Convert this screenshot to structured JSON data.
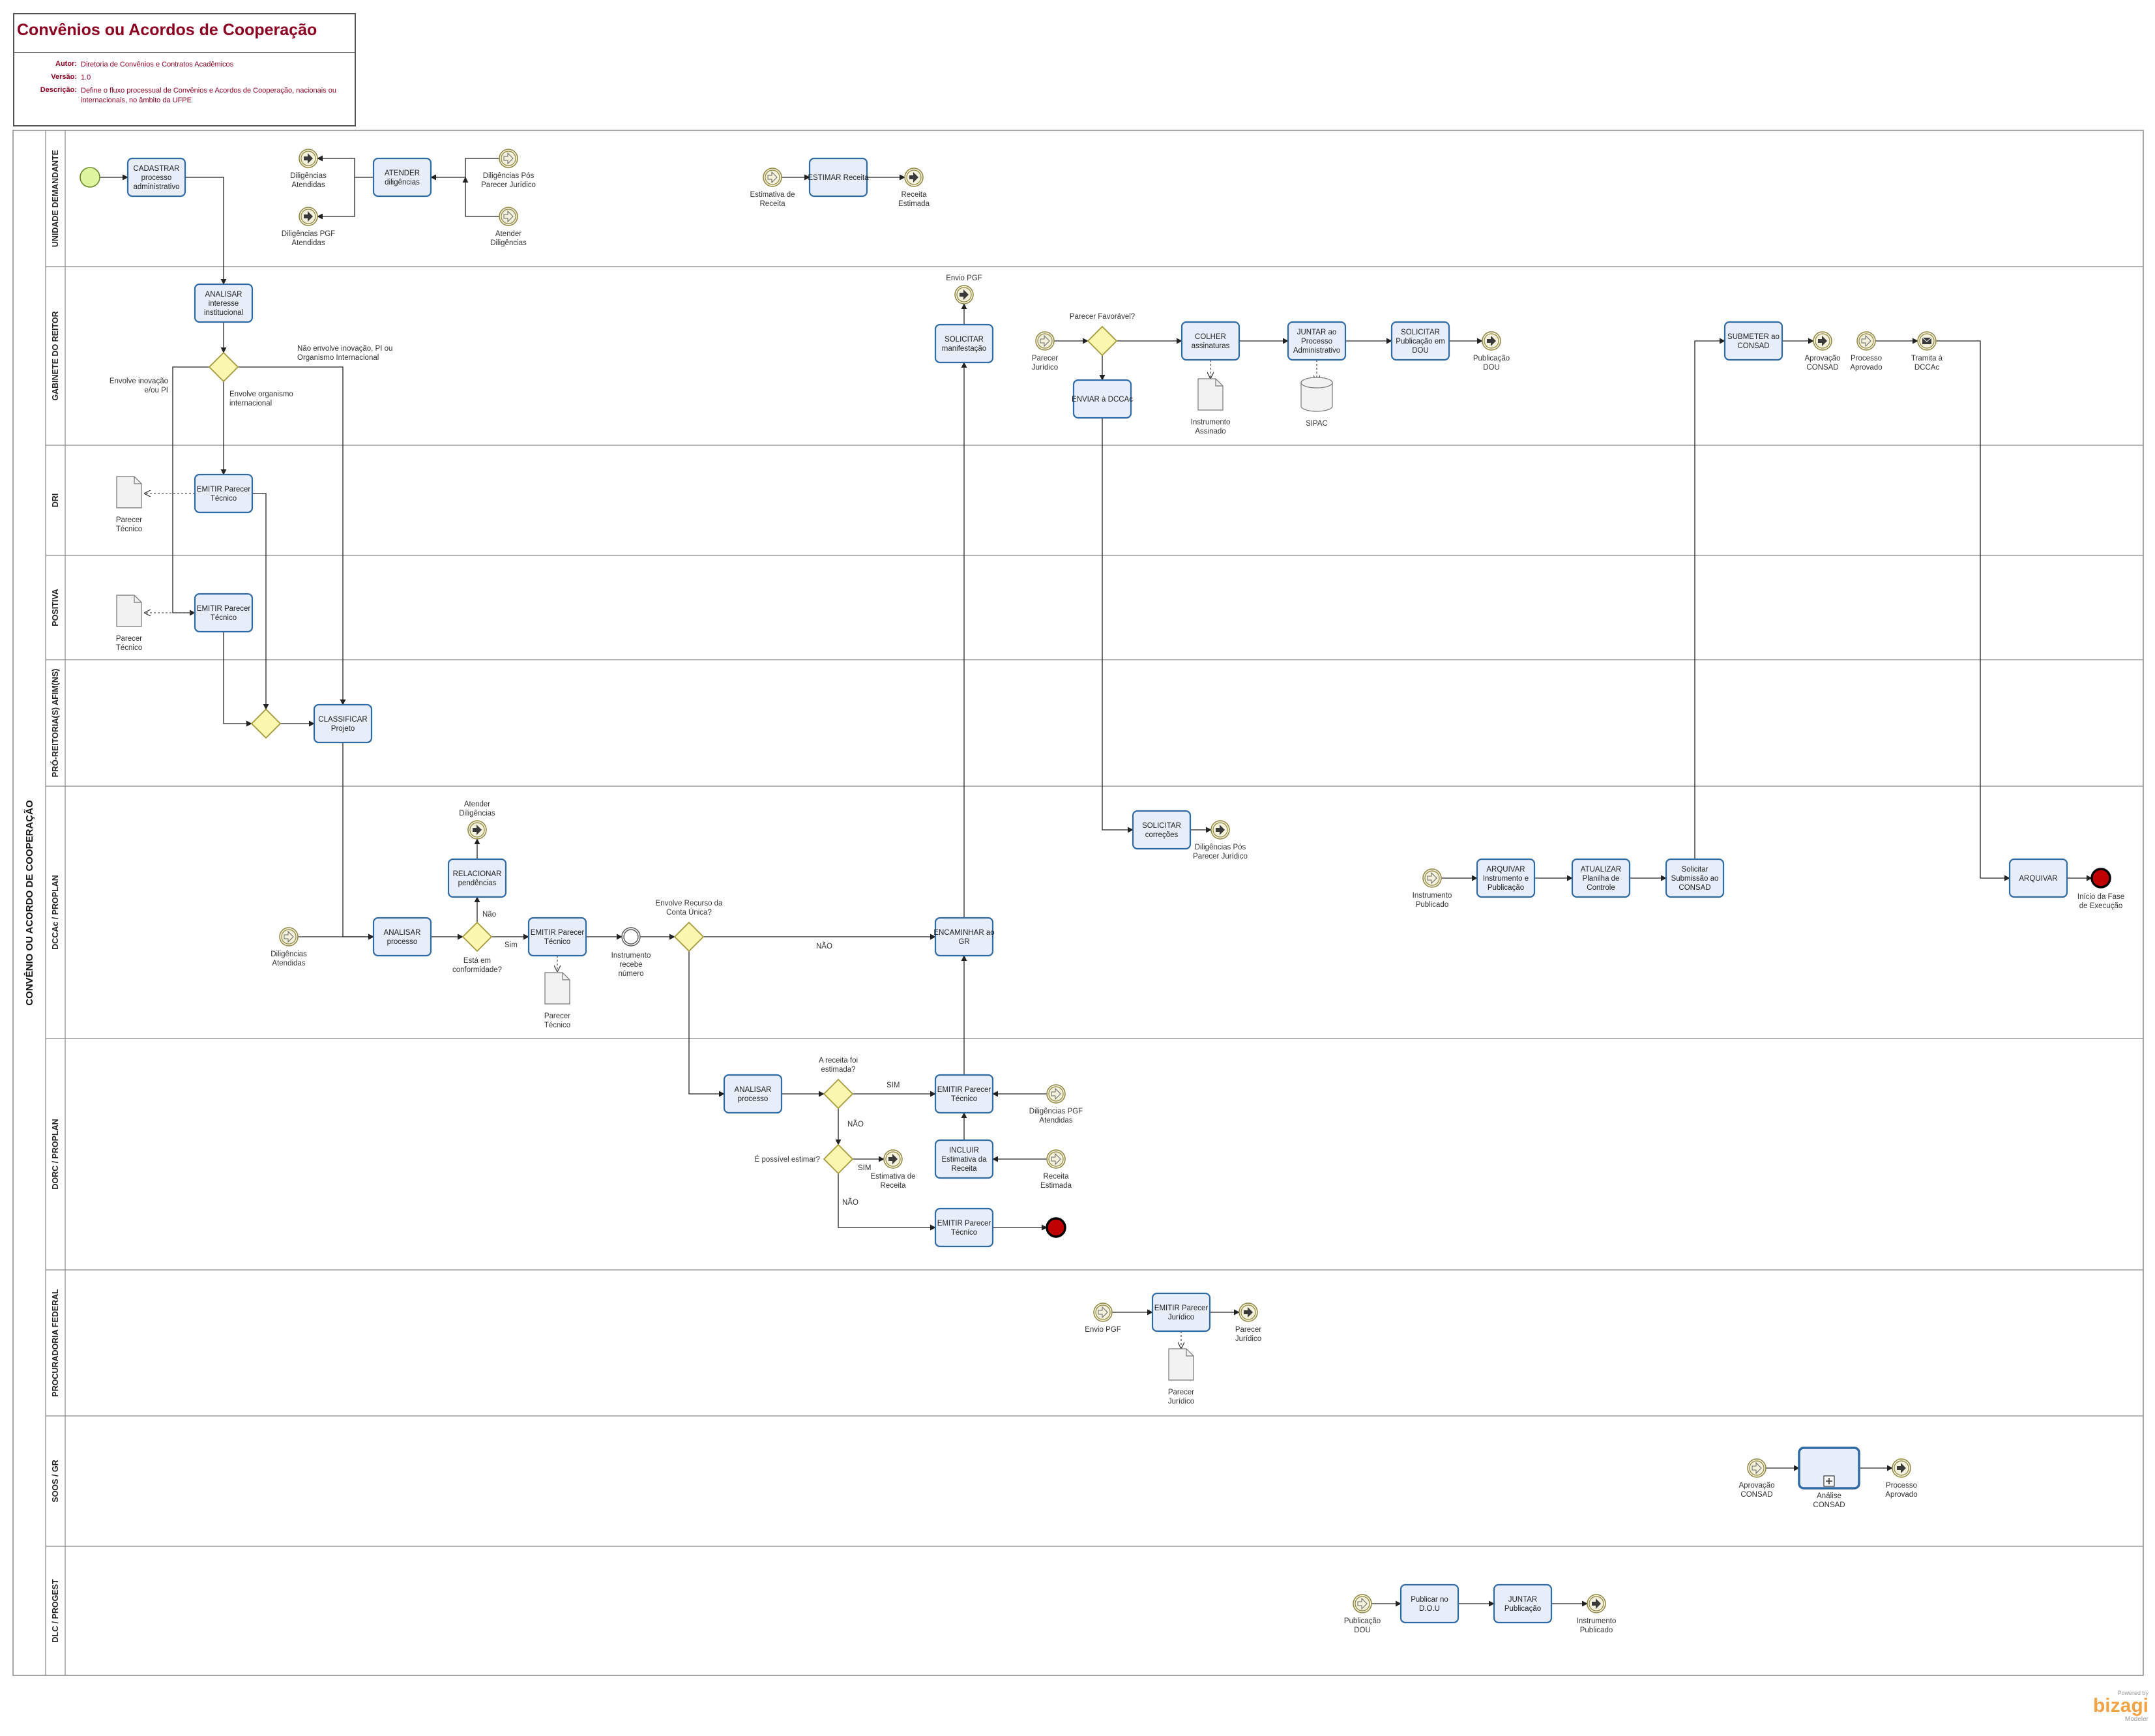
{
  "header": {
    "title": "Convênios ou Acordos de Cooperação",
    "author_label": "Autor:",
    "author": "Diretoria de Convênios e Contratos Acadêmicos",
    "version_label": "Versão:",
    "version": "1.0",
    "description_label": "Descrição:",
    "description": "Define o fluxo processual de Convênios e Acordos de Cooperação, nacionais ou internacionais, no âmbito da UFPE"
  },
  "pool": {
    "name": "CONVÊNIO OU ACORDO DE COOPERAÇÃO"
  },
  "lanes": [
    "UNIDADE DEMANDANTE",
    "GABINETE DO REITOR",
    "DRI",
    "POSITIVA",
    "PRÓ-REITORIA(S) AFIM(NS)",
    "DCCAc / PROPLAN",
    "DORC / PROPLAN",
    "PROCURADORIA FEDERAL",
    "SOOS / GR",
    "DLC / PROGEST"
  ],
  "nodes": [
    {
      "id": "start",
      "kind": "start",
      "label": ""
    },
    {
      "id": "t_cadastrar",
      "kind": "task",
      "label": "CADASTRAR processo administrativo"
    },
    {
      "id": "t_atender",
      "kind": "task",
      "label": "ATENDER diligências"
    },
    {
      "id": "e_dil_atendidas",
      "kind": "throw",
      "label": "Diligências Atendidas"
    },
    {
      "id": "e_dil_pgf_atendidas",
      "kind": "throw",
      "label": "Diligências PGF Atendidas"
    },
    {
      "id": "e_dil_pos_parecer",
      "kind": "catch",
      "label": "Diligências Pós Parecer Jurídico"
    },
    {
      "id": "e_atender_dil_c",
      "kind": "catch",
      "label": "Atender Diligências"
    },
    {
      "id": "e_estimativa_c",
      "kind": "catch",
      "label": "Estimativa de Receita"
    },
    {
      "id": "t_estimar",
      "kind": "task",
      "label": "ESTIMAR Receita"
    },
    {
      "id": "e_receita_estimada_t",
      "kind": "throw",
      "label": "Receita Estimada"
    },
    {
      "id": "t_analisar_interesse",
      "kind": "task",
      "label": "ANALISAR interesse institucional"
    },
    {
      "id": "g1",
      "kind": "gateway",
      "label": ""
    },
    {
      "id": "e_envio_pgf_t",
      "kind": "throw",
      "label": "Envio PGF"
    },
    {
      "id": "t_solicitar_manif",
      "kind": "task",
      "label": "SOLICITAR manifestação"
    },
    {
      "id": "e_parecer_jur_c",
      "kind": "catch",
      "label": "Parecer Jurídico"
    },
    {
      "id": "g_favoravel",
      "kind": "gateway",
      "label": "Parecer Favorável?"
    },
    {
      "id": "t_colher",
      "kind": "task",
      "label": "COLHER assinaturas"
    },
    {
      "id": "t_juntar_proc",
      "kind": "task",
      "label": "JUNTAR ao Processo Administrativo"
    },
    {
      "id": "t_solicitar_pub",
      "kind": "task",
      "label": "SOLICITAR Publicação em DOU"
    },
    {
      "id": "e_pub_dou_t",
      "kind": "throw",
      "label": "Publicação DOU"
    },
    {
      "id": "t_enviar_dccac",
      "kind": "task",
      "label": "ENVIAR à DCCAc"
    },
    {
      "id": "d_instr_assinado",
      "kind": "doc",
      "label": "Instrumento Assinado"
    },
    {
      "id": "db_sipac",
      "kind": "db",
      "label": "SIPAC"
    },
    {
      "id": "t_submeter",
      "kind": "task",
      "label": "SUBMETER ao CONSAD"
    },
    {
      "id": "e_aprov_consad_t",
      "kind": "throw",
      "label": "Aprovação CONSAD"
    },
    {
      "id": "e_proc_aprov_c",
      "kind": "catch",
      "label": "Processo Aprovado"
    },
    {
      "id": "e_tramita",
      "kind": "msg",
      "label": "Tramita à DCCAc"
    },
    {
      "id": "d_parecer_dri",
      "kind": "doc",
      "label": "Parecer Técnico"
    },
    {
      "id": "t_emitir_dri",
      "kind": "task",
      "label": "EMITIR Parecer Técnico"
    },
    {
      "id": "d_parecer_pos",
      "kind": "doc",
      "label": "Parecer Técnico"
    },
    {
      "id": "t_emitir_pos",
      "kind": "task",
      "label": "EMITIR Parecer Técnico"
    },
    {
      "id": "g_join",
      "kind": "gateway",
      "label": ""
    },
    {
      "id": "t_classificar",
      "kind": "task",
      "label": "CLASSIFICAR Projeto"
    },
    {
      "id": "e_atender_dil_t",
      "kind": "throw",
      "label": "Atender Diligências"
    },
    {
      "id": "t_relacionar",
      "kind": "task",
      "label": "RELACIONAR pendências"
    },
    {
      "id": "e_dil_atend_c",
      "kind": "catch",
      "label": "Diligências Atendidas"
    },
    {
      "id": "t_analisar_proc",
      "kind": "task",
      "label": "ANALISAR processo"
    },
    {
      "id": "g_conform",
      "kind": "gateway",
      "label": "Está em conformidade?"
    },
    {
      "id": "t_emitir_dccac",
      "kind": "task",
      "label": "EMITIR Parecer Técnico"
    },
    {
      "id": "d_parecer_dccac",
      "kind": "doc",
      "label": "Parecer Técnico"
    },
    {
      "id": "e_instr_num",
      "kind": "inter",
      "label": "Instrumento recebe número"
    },
    {
      "id": "g_recurso",
      "kind": "gateway",
      "label": "Envolve Recurso da Conta Única?"
    },
    {
      "id": "t_encaminhar",
      "kind": "task",
      "label": "ENCAMINHAR ao GR"
    },
    {
      "id": "t_solicitar_corr",
      "kind": "task",
      "label": "SOLICITAR correções"
    },
    {
      "id": "e_dil_pos_t",
      "kind": "throw",
      "label": "Diligências Pós Parecer Jurídico"
    },
    {
      "id": "e_instr_pub_c",
      "kind": "catch",
      "label": "Instrumento Publicado"
    },
    {
      "id": "t_arquivar_instr",
      "kind": "task",
      "label": "ARQUIVAR Instrumento e Publicação"
    },
    {
      "id": "t_atualizar",
      "kind": "task",
      "label": "ATUALIZAR Planilha de Controle"
    },
    {
      "id": "t_solicitar_sub",
      "kind": "task",
      "label": "Solicitar Submissão ao CONSAD"
    },
    {
      "id": "t_arquivar",
      "kind": "task",
      "label": "ARQUIVAR"
    },
    {
      "id": "end_fase",
      "kind": "end",
      "label": "Início da Fase de Execução"
    },
    {
      "id": "t_analisar_dorc",
      "kind": "task",
      "label": "ANALISAR processo"
    },
    {
      "id": "g_estimada",
      "kind": "gateway",
      "label": "A receita foi estimada?"
    },
    {
      "id": "t_emitir_dorc1",
      "kind": "task",
      "label": "EMITIR Parecer Técnico"
    },
    {
      "id": "e_dil_pgf_c",
      "kind": "catch",
      "label": "Diligências PGF Atendidas"
    },
    {
      "id": "g_possivel",
      "kind": "gateway",
      "label": "É possível estimar?"
    },
    {
      "id": "e_estimativa_t",
      "kind": "throw",
      "label": "Estimativa de Receita"
    },
    {
      "id": "t_incluir",
      "kind": "task",
      "label": "INCLUIR Estimativa da Receita"
    },
    {
      "id": "e_receita_est_c",
      "kind": "catch",
      "label": "Receita Estimada"
    },
    {
      "id": "t_emitir_dorc2",
      "kind": "task",
      "label": "EMITIR Parecer Técnico"
    },
    {
      "id": "end_dorc",
      "kind": "end",
      "label": ""
    },
    {
      "id": "e_envio_pgf_c",
      "kind": "catch",
      "label": "Envio PGF"
    },
    {
      "id": "t_emitir_jur",
      "kind": "task",
      "label": "EMITIR Parecer Jurídico"
    },
    {
      "id": "e_parecer_jur_t",
      "kind": "throw",
      "label": "Parecer Jurídico"
    },
    {
      "id": "d_parecer_jur",
      "kind": "doc",
      "label": "Parecer Jurídico"
    },
    {
      "id": "e_aprov_consad_c",
      "kind": "catch",
      "label": "Aprovação CONSAD"
    },
    {
      "id": "sp_analise",
      "kind": "subprocess",
      "label": "Análise CONSAD"
    },
    {
      "id": "e_proc_aprov_t",
      "kind": "throw",
      "label": "Processo Aprovado"
    },
    {
      "id": "e_pub_dou_c",
      "kind": "catch",
      "label": "Publicação DOU"
    },
    {
      "id": "t_publicar",
      "kind": "task",
      "label": "Publicar no D.O.U"
    },
    {
      "id": "t_juntar_pub",
      "kind": "task",
      "label": "JUNTAR Publicação"
    },
    {
      "id": "e_instr_pub_t",
      "kind": "throw",
      "label": "Instrumento Publicado"
    }
  ],
  "edge_labels": {
    "inovacao": "Envolve inovação e/ou PI",
    "organismo": "Envolve organismo internacional",
    "nao_envolve": "Não envolve inovação, PI ou Organismo Internacional",
    "nao": "Não",
    "sim": "Sim",
    "NAO": "NÃO",
    "SIM": "SIM"
  },
  "brand": {
    "powered": "Powered by",
    "name": "bizagi",
    "product": "Modeler"
  },
  "colors": {
    "title": "#8B0020",
    "task_fill": "#e8eef9",
    "task_stroke": "#2f6aa3",
    "gateway_fill": "#fbf6b0",
    "gateway_stroke": "#a59a3a",
    "start_fill": "#dff5a0",
    "end_fill": "#c00000",
    "brand": "#f0a445"
  }
}
